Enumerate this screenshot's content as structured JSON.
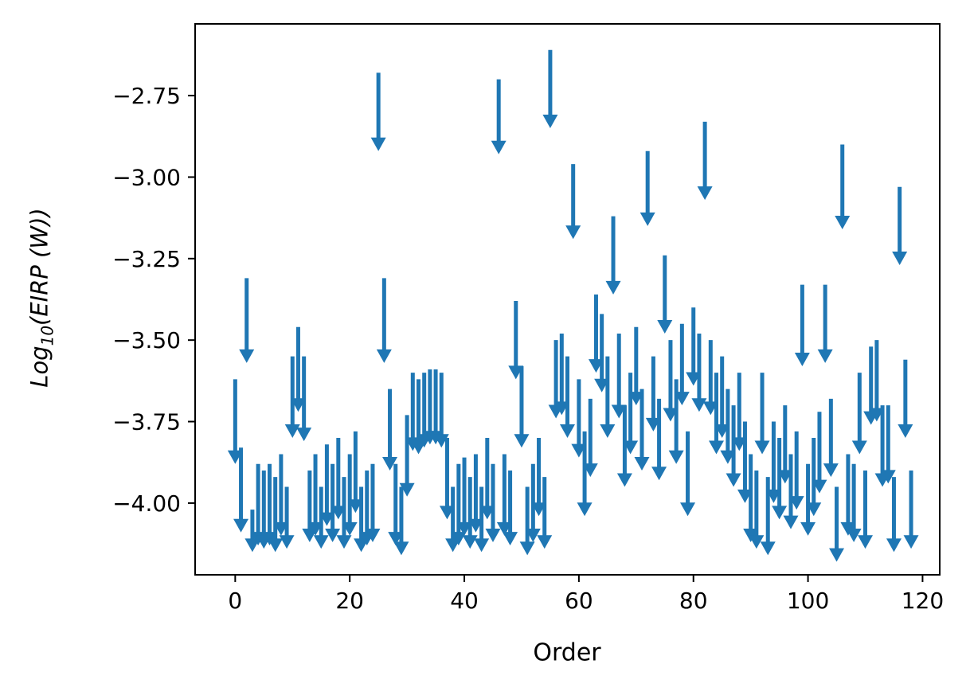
{
  "figure": {
    "xlabel": "Order",
    "ylabel": {
      "prefix": "Log",
      "sub": "10",
      "rest": "(EIRP (W))"
    }
  },
  "chart_data": {
    "type": "scatter",
    "marker": "down-arrow-upper-limit",
    "title": "",
    "xlabel": "Order",
    "ylabel": "Log10(EIRP (W))",
    "color": "#1f77b4",
    "grid": false,
    "legend": "none",
    "xlim": [
      -7,
      123
    ],
    "ylim": [
      -4.22,
      -2.53
    ],
    "xticks": [
      0,
      20,
      40,
      60,
      80,
      100,
      120
    ],
    "yticks": [
      -2.75,
      -3.0,
      -3.25,
      -3.5,
      -3.75,
      -4.0
    ],
    "points_format": "[order, arrow_top_log10_eirp, arrow_tip_log10_eirp]",
    "points": [
      [
        0,
        -3.62,
        -3.88
      ],
      [
        1,
        -3.83,
        -4.09
      ],
      [
        2,
        -3.31,
        -3.57
      ],
      [
        3,
        -4.02,
        -4.15
      ],
      [
        4,
        -3.88,
        -4.13
      ],
      [
        5,
        -3.9,
        -4.14
      ],
      [
        6,
        -3.88,
        -4.13
      ],
      [
        7,
        -3.92,
        -4.15
      ],
      [
        8,
        -3.85,
        -4.1
      ],
      [
        9,
        -3.95,
        -4.14
      ],
      [
        10,
        -3.55,
        -3.8
      ],
      [
        11,
        -3.46,
        -3.72
      ],
      [
        12,
        -3.55,
        -3.81
      ],
      [
        13,
        -3.9,
        -4.12
      ],
      [
        14,
        -3.85,
        -4.1
      ],
      [
        15,
        -3.95,
        -4.14
      ],
      [
        16,
        -3.82,
        -4.07
      ],
      [
        17,
        -3.88,
        -4.12
      ],
      [
        18,
        -3.8,
        -4.05
      ],
      [
        19,
        -3.92,
        -4.14
      ],
      [
        20,
        -3.85,
        -4.1
      ],
      [
        21,
        -3.78,
        -4.03
      ],
      [
        22,
        -3.95,
        -4.15
      ],
      [
        23,
        -3.9,
        -4.13
      ],
      [
        24,
        -3.88,
        -4.12
      ],
      [
        25,
        -2.68,
        -2.92
      ],
      [
        26,
        -3.31,
        -3.57
      ],
      [
        27,
        -3.65,
        -3.9
      ],
      [
        28,
        -3.88,
        -4.13
      ],
      [
        29,
        -3.95,
        -4.16
      ],
      [
        30,
        -3.73,
        -3.98
      ],
      [
        31,
        -3.6,
        -3.84
      ],
      [
        32,
        -3.62,
        -3.85
      ],
      [
        33,
        -3.6,
        -3.83
      ],
      [
        34,
        -3.59,
        -3.82
      ],
      [
        35,
        -3.59,
        -3.82
      ],
      [
        36,
        -3.6,
        -3.83
      ],
      [
        37,
        -3.8,
        -4.05
      ],
      [
        38,
        -3.95,
        -4.15
      ],
      [
        39,
        -3.88,
        -4.13
      ],
      [
        40,
        -3.86,
        -4.1
      ],
      [
        41,
        -3.92,
        -4.14
      ],
      [
        42,
        -3.85,
        -4.09
      ],
      [
        43,
        -3.95,
        -4.15
      ],
      [
        44,
        -3.8,
        -4.05
      ],
      [
        45,
        -3.88,
        -4.12
      ],
      [
        46,
        -2.7,
        -2.93
      ],
      [
        47,
        -3.85,
        -4.1
      ],
      [
        48,
        -3.9,
        -4.13
      ],
      [
        49,
        -3.38,
        -3.62
      ],
      [
        50,
        -3.58,
        -3.83
      ],
      [
        51,
        -3.95,
        -4.16
      ],
      [
        52,
        -3.88,
        -4.12
      ],
      [
        53,
        -3.8,
        -4.04
      ],
      [
        54,
        -3.92,
        -4.14
      ],
      [
        55,
        -2.61,
        -2.85
      ],
      [
        56,
        -3.5,
        -3.74
      ],
      [
        57,
        -3.48,
        -3.73
      ],
      [
        58,
        -3.55,
        -3.8
      ],
      [
        59,
        -2.96,
        -3.19
      ],
      [
        60,
        -3.62,
        -3.86
      ],
      [
        61,
        -3.78,
        -4.04
      ],
      [
        62,
        -3.68,
        -3.92
      ],
      [
        63,
        -3.36,
        -3.6
      ],
      [
        64,
        -3.42,
        -3.66
      ],
      [
        65,
        -3.55,
        -3.8
      ],
      [
        66,
        -3.12,
        -3.36
      ],
      [
        67,
        -3.48,
        -3.74
      ],
      [
        68,
        -3.7,
        -3.95
      ],
      [
        69,
        -3.6,
        -3.85
      ],
      [
        70,
        -3.46,
        -3.7
      ],
      [
        71,
        -3.65,
        -3.9
      ],
      [
        72,
        -2.92,
        -3.15
      ],
      [
        73,
        -3.55,
        -3.78
      ],
      [
        74,
        -3.68,
        -3.93
      ],
      [
        75,
        -3.24,
        -3.48
      ],
      [
        76,
        -3.5,
        -3.75
      ],
      [
        77,
        -3.62,
        -3.88
      ],
      [
        78,
        -3.45,
        -3.7
      ],
      [
        79,
        -3.78,
        -4.04
      ],
      [
        80,
        -3.4,
        -3.64
      ],
      [
        81,
        -3.48,
        -3.72
      ],
      [
        82,
        -2.83,
        -3.07
      ],
      [
        83,
        -3.5,
        -3.73
      ],
      [
        84,
        -3.6,
        -3.85
      ],
      [
        85,
        -3.55,
        -3.8
      ],
      [
        86,
        -3.65,
        -3.88
      ],
      [
        87,
        -3.7,
        -3.95
      ],
      [
        88,
        -3.6,
        -3.84
      ],
      [
        89,
        -3.75,
        -4.0
      ],
      [
        90,
        -3.85,
        -4.12
      ],
      [
        91,
        -3.9,
        -4.14
      ],
      [
        92,
        -3.6,
        -3.85
      ],
      [
        93,
        -3.92,
        -4.16
      ],
      [
        94,
        -3.75,
        -4.0
      ],
      [
        95,
        -3.8,
        -4.05
      ],
      [
        96,
        -3.7,
        -3.94
      ],
      [
        97,
        -3.85,
        -4.08
      ],
      [
        98,
        -3.78,
        -4.02
      ],
      [
        99,
        -3.33,
        -3.58
      ],
      [
        100,
        -3.88,
        -4.1
      ],
      [
        101,
        -3.8,
        -4.04
      ],
      [
        102,
        -3.72,
        -3.97
      ],
      [
        103,
        -3.33,
        -3.57
      ],
      [
        104,
        -3.68,
        -3.92
      ],
      [
        105,
        -3.95,
        -4.18
      ],
      [
        106,
        -2.9,
        -3.16
      ],
      [
        107,
        -3.85,
        -4.1
      ],
      [
        108,
        -3.88,
        -4.12
      ],
      [
        109,
        -3.6,
        -3.85
      ],
      [
        110,
        -3.9,
        -4.14
      ],
      [
        111,
        -3.52,
        -3.76
      ],
      [
        112,
        -3.5,
        -3.75
      ],
      [
        113,
        -3.7,
        -3.95
      ],
      [
        114,
        -3.7,
        -3.94
      ],
      [
        115,
        -3.92,
        -4.15
      ],
      [
        116,
        -3.03,
        -3.27
      ],
      [
        117,
        -3.56,
        -3.8
      ],
      [
        118,
        -3.9,
        -4.14
      ]
    ]
  }
}
